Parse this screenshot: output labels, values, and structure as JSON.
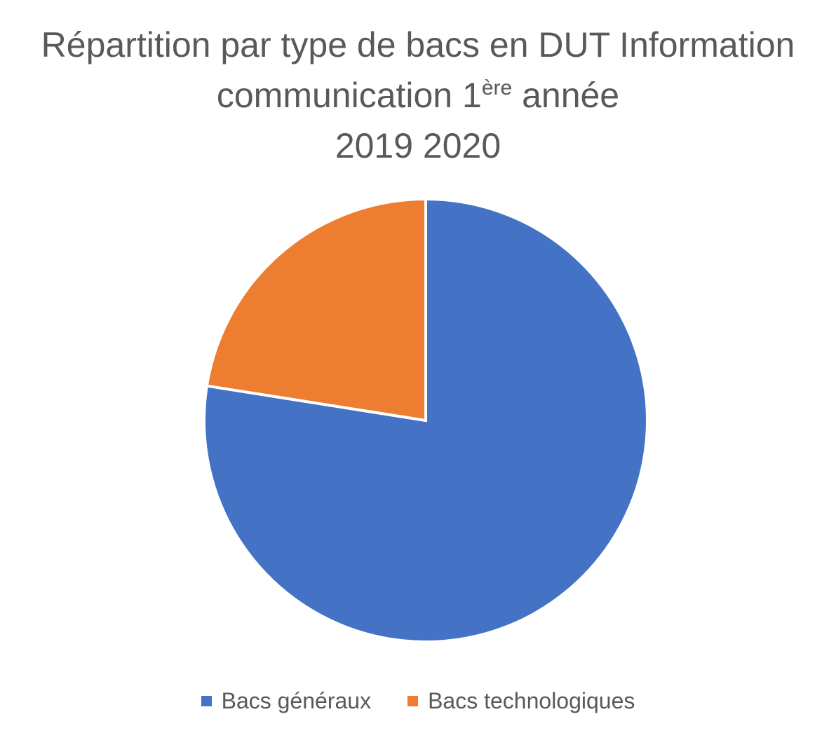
{
  "chart_data": {
    "type": "pie",
    "title": {
      "line1": "Répartition par type de bacs en DUT Information",
      "line2_before": "communication 1",
      "line2_sup": "ère",
      "line2_after": " année",
      "line3": "2019 2020"
    },
    "series": [
      {
        "name": "Bacs généraux",
        "value": 77.5,
        "color": "#4472C4"
      },
      {
        "name": "Bacs technologiques",
        "value": 22.5,
        "color": "#ED7D31"
      }
    ],
    "start_angle_deg": 0,
    "direction": "clockwise",
    "legend_position": "bottom",
    "slice_border_color": "#FFFFFF"
  }
}
